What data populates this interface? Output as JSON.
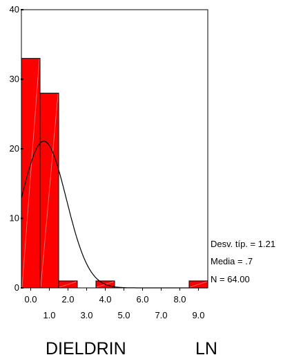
{
  "chart_data": {
    "type": "bar",
    "subtype": "histogram",
    "x_ticks_upper": [
      "0.0",
      "2.0",
      "4.0",
      "6.0",
      "8.0"
    ],
    "x_ticks_lower": [
      "1.0",
      "3.0",
      "5.0",
      "7.0",
      "9.0"
    ],
    "y_ticks": [
      "0",
      "10",
      "20",
      "30",
      "40"
    ],
    "ylim": [
      0,
      40
    ],
    "xlim": [
      -0.5,
      9.5
    ],
    "bins": [
      {
        "x": 0.0,
        "count": 33
      },
      {
        "x": 1.0,
        "count": 28
      },
      {
        "x": 2.0,
        "count": 1
      },
      {
        "x": 3.0,
        "count": 0
      },
      {
        "x": 4.0,
        "count": 1
      },
      {
        "x": 5.0,
        "count": 0
      },
      {
        "x": 6.0,
        "count": 0
      },
      {
        "x": 7.0,
        "count": 0
      },
      {
        "x": 8.0,
        "count": 0
      },
      {
        "x": 9.0,
        "count": 1
      }
    ],
    "bin_width": 1.0,
    "normal_curve": {
      "mean": 0.7,
      "sd": 1.21,
      "n": 64
    },
    "stats": {
      "sd_text": "Desv. típ. = 1.21",
      "mean_text": "Media = .7",
      "n_text": "N = 64.00"
    },
    "xlabel_left": "DIELDRIN",
    "xlabel_right": "LN",
    "bar_color": "#ff0000",
    "grid": false
  }
}
